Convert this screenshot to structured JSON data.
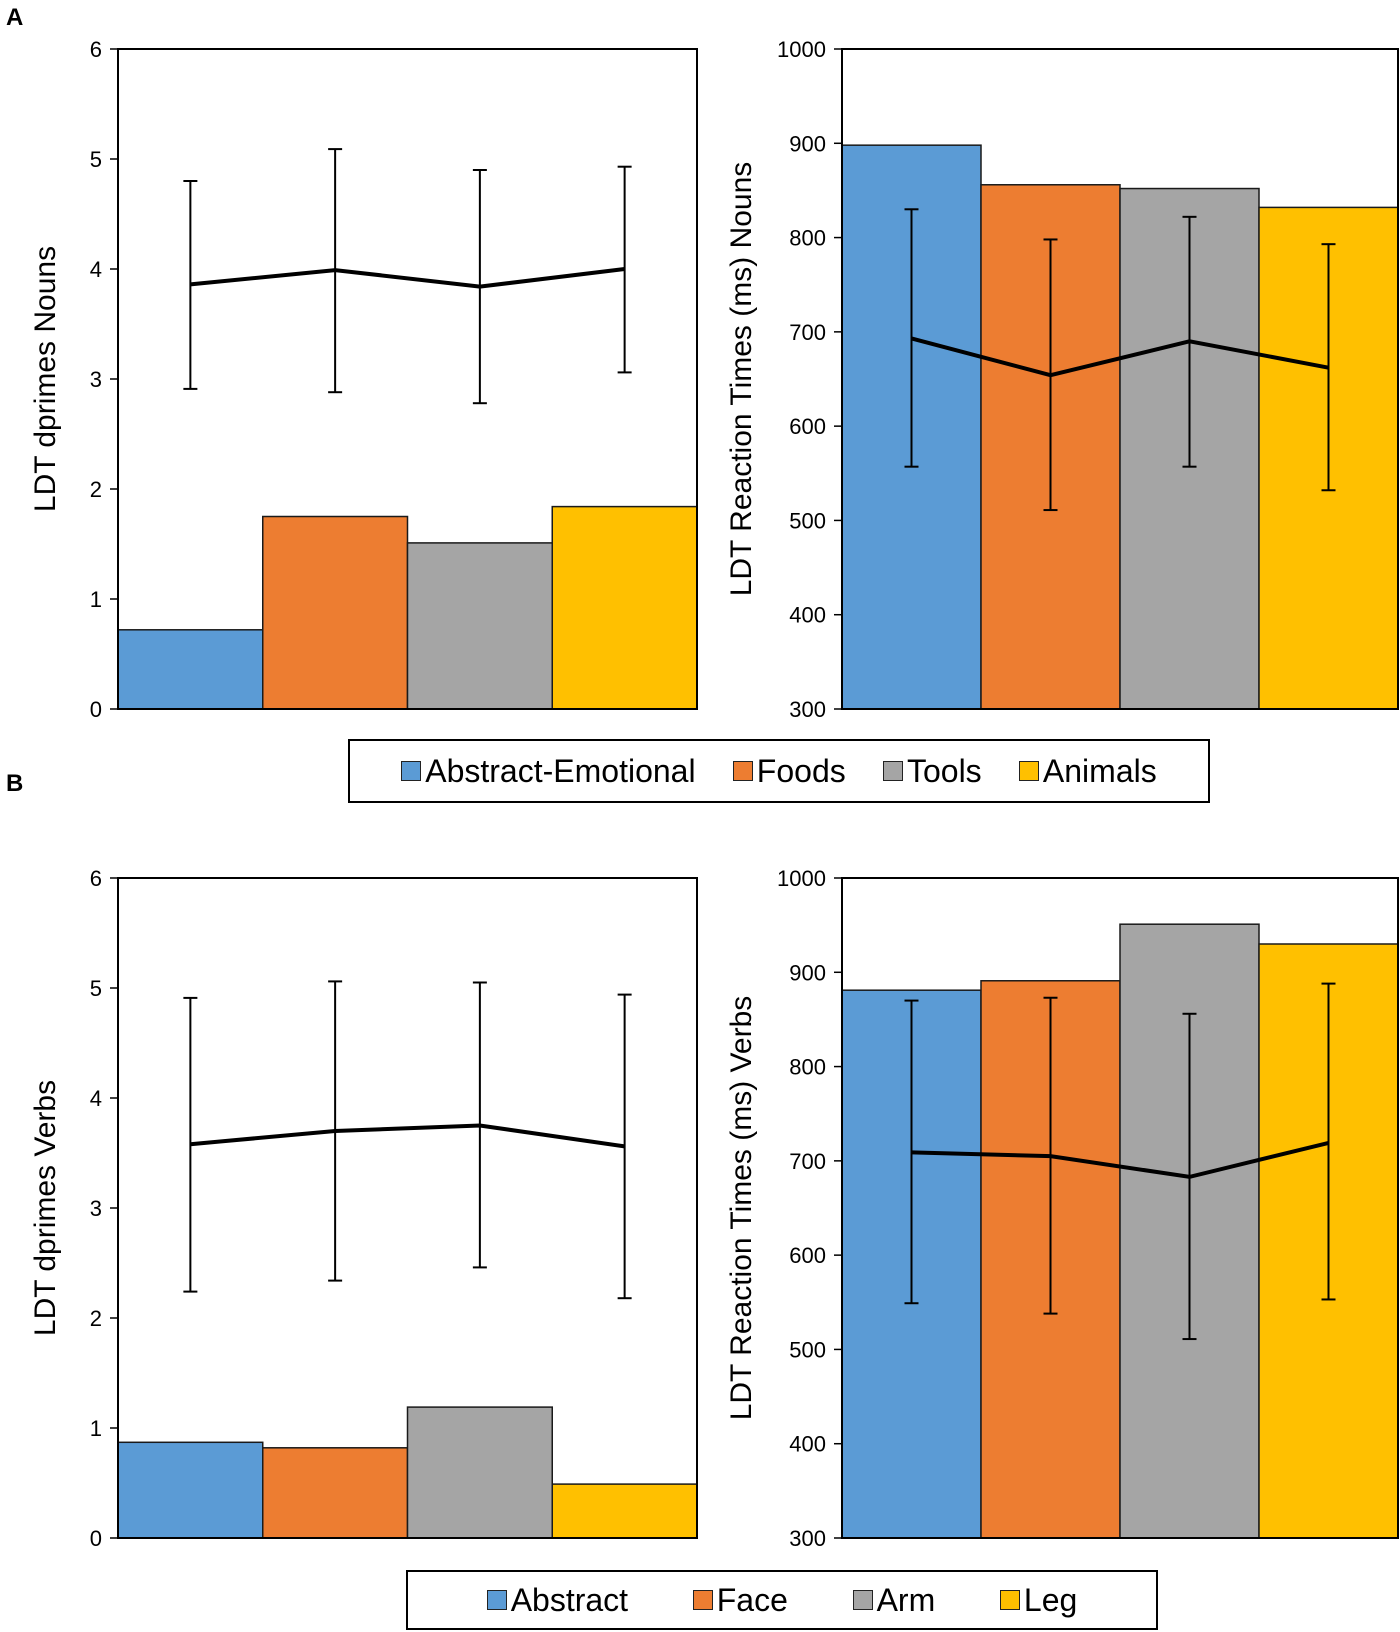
{
  "panels": {
    "a": {
      "label": "A"
    },
    "b": {
      "label": "B"
    }
  },
  "colors": {
    "abstract": "#5b9bd5",
    "orange": "#ed7d31",
    "gray": "#a5a5a5",
    "yellow": "#ffc000"
  },
  "legend_a": {
    "items": [
      {
        "label": "Abstract-Emotional",
        "color": "#5b9bd5"
      },
      {
        "label": "Foods",
        "color": "#ed7d31"
      },
      {
        "label": "Tools",
        "color": "#a5a5a5"
      },
      {
        "label": "Animals",
        "color": "#ffc000"
      }
    ]
  },
  "legend_b": {
    "items": [
      {
        "label": "Abstract",
        "color": "#5b9bd5"
      },
      {
        "label": "Face",
        "color": "#ed7d31"
      },
      {
        "label": "Arm",
        "color": "#a5a5a5"
      },
      {
        "label": "Leg",
        "color": "#ffc000"
      }
    ]
  },
  "chart_data": [
    {
      "id": "a-dprimes",
      "type": "bar",
      "ylabel": "LDT dprimes Nouns",
      "ylim": [
        0,
        6
      ],
      "yticks": [
        0,
        1,
        2,
        3,
        4,
        5,
        6
      ],
      "categories": [
        "Abstract-Emotional",
        "Foods",
        "Tools",
        "Animals"
      ],
      "bar_values": [
        0.72,
        1.75,
        1.51,
        1.84
      ],
      "line_values": [
        3.86,
        3.99,
        3.84,
        4.0
      ],
      "error_low": [
        2.91,
        2.88,
        2.78,
        3.06
      ],
      "error_high": [
        4.8,
        5.09,
        4.9,
        4.93
      ]
    },
    {
      "id": "a-rt",
      "type": "bar",
      "ylabel": "LDT Reaction Times (ms) Nouns",
      "ylim": [
        300,
        1000
      ],
      "yticks": [
        300,
        400,
        500,
        600,
        700,
        800,
        900,
        1000
      ],
      "categories": [
        "Abstract-Emotional",
        "Foods",
        "Tools",
        "Animals"
      ],
      "bar_values": [
        898,
        856,
        852,
        832
      ],
      "line_values": [
        693,
        654,
        690,
        662
      ],
      "error_low": [
        557,
        511,
        557,
        532
      ],
      "error_high": [
        830,
        798,
        822,
        793
      ]
    },
    {
      "id": "b-dprimes",
      "type": "bar",
      "ylabel": "LDT dprimes Verbs",
      "ylim": [
        0,
        6
      ],
      "yticks": [
        0,
        1,
        2,
        3,
        4,
        5,
        6
      ],
      "categories": [
        "Abstract",
        "Face",
        "Arm",
        "Leg"
      ],
      "bar_values": [
        0.87,
        0.82,
        1.19,
        0.49
      ],
      "line_values": [
        3.58,
        3.7,
        3.75,
        3.56
      ],
      "error_low": [
        2.24,
        2.34,
        2.46,
        2.18
      ],
      "error_high": [
        4.91,
        5.06,
        5.05,
        4.94
      ]
    },
    {
      "id": "b-rt",
      "type": "bar",
      "ylabel": "LDT Reaction Times (ms) Verbs",
      "ylim": [
        300,
        1000
      ],
      "yticks": [
        300,
        400,
        500,
        600,
        700,
        800,
        900,
        1000
      ],
      "categories": [
        "Abstract",
        "Face",
        "Arm",
        "Leg"
      ],
      "bar_values": [
        881,
        891,
        951,
        930
      ],
      "line_values": [
        709,
        705,
        683,
        719
      ],
      "error_low": [
        549,
        538,
        511,
        553
      ],
      "error_high": [
        870,
        873,
        856,
        888
      ]
    }
  ]
}
